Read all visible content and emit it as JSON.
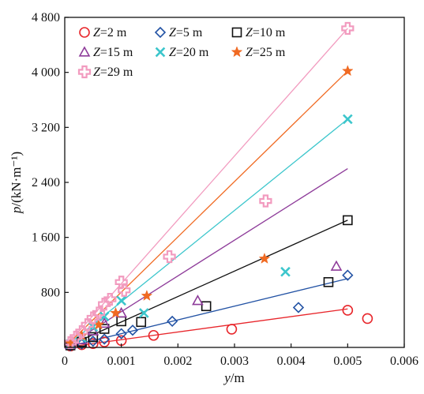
{
  "chart_data": {
    "type": "scatter",
    "xlabel_var": "y",
    "xlabel_unit": "/m",
    "ylabel_var": "p",
    "ylabel_unit": "/(kN·m⁻¹)",
    "xlim": [
      0,
      0.006
    ],
    "ylim": [
      0,
      4800
    ],
    "xticks": [
      {
        "value": 0,
        "label": "0"
      },
      {
        "value": 0.001,
        "label": "0.001"
      },
      {
        "value": 0.002,
        "label": "0.002"
      },
      {
        "value": 0.003,
        "label": "0.003"
      },
      {
        "value": 0.004,
        "label": "0.004"
      },
      {
        "value": 0.005,
        "label": "0.005"
      },
      {
        "value": 0.006,
        "label": "0.006"
      }
    ],
    "yticks": [
      {
        "value": 800,
        "label": "800"
      },
      {
        "value": 1600,
        "label": "1 600"
      },
      {
        "value": 2400,
        "label": "2 400"
      },
      {
        "value": 3200,
        "label": "3 200"
      },
      {
        "value": 4000,
        "label": "4 000"
      },
      {
        "value": 4800,
        "label": "4 800"
      }
    ],
    "grid": false,
    "legend_position": "top-left",
    "series": [
      {
        "name": "Z=2 m",
        "var": "Z",
        "rest": "=2 m",
        "marker": "circle",
        "color": "#e8262b",
        "points": [
          [
            0.0001,
            20
          ],
          [
            0.0003,
            40
          ],
          [
            0.0005,
            55
          ],
          [
            0.0007,
            80
          ],
          [
            0.001,
            100
          ],
          [
            0.00157,
            175
          ],
          [
            0.00295,
            265
          ],
          [
            0.005,
            540
          ],
          [
            0.00535,
            420
          ]
        ],
        "fit": [
          [
            0,
            0
          ],
          [
            0.005,
            560
          ]
        ]
      },
      {
        "name": "Z=5 m",
        "var": "Z",
        "rest": "=5 m",
        "marker": "diamond",
        "color": "#2252a4",
        "points": [
          [
            0.0001,
            25
          ],
          [
            0.0003,
            50
          ],
          [
            0.0005,
            90
          ],
          [
            0.0007,
            120
          ],
          [
            0.001,
            200
          ],
          [
            0.0012,
            250
          ],
          [
            0.0019,
            380
          ],
          [
            0.00413,
            580
          ],
          [
            0.005,
            1050
          ]
        ],
        "fit": [
          [
            0,
            0
          ],
          [
            0.005,
            1000
          ]
        ]
      },
      {
        "name": "Z=10 m",
        "var": "Z",
        "rest": "=10 m",
        "marker": "square",
        "color": "#111111",
        "points": [
          [
            0.0001,
            30
          ],
          [
            0.0003,
            80
          ],
          [
            0.0005,
            150
          ],
          [
            0.0007,
            270
          ],
          [
            0.001,
            380
          ],
          [
            0.00135,
            370
          ],
          [
            0.0025,
            600
          ],
          [
            0.00466,
            950
          ],
          [
            0.005,
            1850
          ]
        ],
        "fit": [
          [
            0,
            0
          ],
          [
            0.005,
            1850
          ]
        ]
      },
      {
        "name": "Z=15 m",
        "var": "Z",
        "rest": "=15 m",
        "marker": "triangle",
        "color": "#8e3c9a",
        "points": [
          [
            0.0001,
            40
          ],
          [
            0.0003,
            110
          ],
          [
            0.0005,
            240
          ],
          [
            0.0007,
            350
          ],
          [
            0.001,
            500
          ],
          [
            0.00235,
            680
          ],
          [
            0.0048,
            1180
          ]
        ],
        "fit": [
          [
            0,
            0
          ],
          [
            0.005,
            2600
          ]
        ]
      },
      {
        "name": "Z=20 m",
        "var": "Z",
        "rest": "=20 m",
        "marker": "x",
        "color": "#3cc6cc",
        "points": [
          [
            0.0001,
            50
          ],
          [
            0.0003,
            140
          ],
          [
            0.0005,
            300
          ],
          [
            0.0007,
            450
          ],
          [
            0.001,
            680
          ],
          [
            0.0014,
            500
          ],
          [
            0.0039,
            1100
          ],
          [
            0.005,
            3320
          ]
        ],
        "fit": [
          [
            0,
            0
          ],
          [
            0.005,
            3320
          ]
        ]
      },
      {
        "name": "Z=25 m",
        "var": "Z",
        "rest": "=25 m",
        "marker": "star",
        "color": "#f06a22",
        "points": [
          [
            0.0001,
            60
          ],
          [
            0.0003,
            170
          ],
          [
            0.0006,
            330
          ],
          [
            0.0009,
            500
          ],
          [
            0.00145,
            750
          ],
          [
            0.00353,
            1290
          ],
          [
            0.005,
            4020
          ]
        ],
        "fit": [
          [
            0,
            0
          ],
          [
            0.005,
            4020
          ]
        ]
      },
      {
        "name": "Z=29 m",
        "var": "Z",
        "rest": "=29 m",
        "marker": "plus",
        "color": "#f29bbf",
        "points": [
          [
            0.0001,
            70
          ],
          [
            0.0002,
            150
          ],
          [
            0.0003,
            230
          ],
          [
            0.0004,
            330
          ],
          [
            0.0005,
            430
          ],
          [
            0.0006,
            500
          ],
          [
            0.0007,
            630
          ],
          [
            0.0008,
            700
          ],
          [
            0.001,
            950
          ],
          [
            0.00105,
            830
          ],
          [
            0.00185,
            1320
          ],
          [
            0.00355,
            2130
          ],
          [
            0.005,
            4640
          ]
        ],
        "fit": [
          [
            0,
            0
          ],
          [
            0.005,
            4640
          ]
        ]
      }
    ]
  }
}
